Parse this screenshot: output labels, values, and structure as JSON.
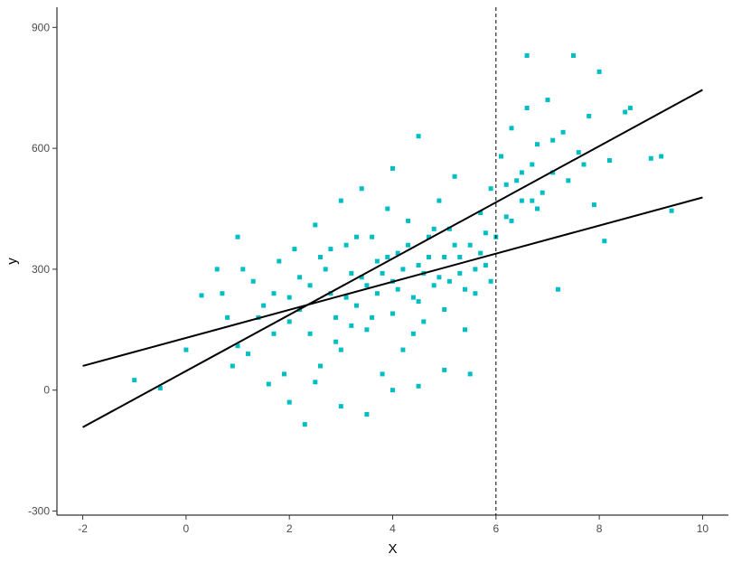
{
  "chart_data": {
    "type": "scatter",
    "title": "",
    "xlabel": "X",
    "ylabel": "y",
    "xlim": [
      -2.5,
      10.5
    ],
    "ylim": [
      -310,
      950
    ],
    "x_ticks": [
      -2,
      0,
      2,
      4,
      6,
      8,
      10
    ],
    "y_ticks": [
      -300,
      0,
      300,
      600,
      900
    ],
    "x_tick_labels": [
      "-2",
      "0",
      "2",
      "4",
      "6",
      "8",
      "10"
    ],
    "y_tick_labels": [
      "-300",
      "0",
      "300",
      "600",
      "900"
    ],
    "grid": false,
    "vline": {
      "x": 6,
      "style": "dashed",
      "color": "#000000"
    },
    "lines": [
      {
        "x": [
          -2,
          10
        ],
        "y": [
          60,
          478
        ],
        "color": "#000000"
      },
      {
        "x": [
          -2,
          10
        ],
        "y": [
          -92,
          745
        ],
        "color": "#000000"
      }
    ],
    "points_color": "#00BFC4",
    "points": [
      [
        -1.0,
        25
      ],
      [
        -0.5,
        5
      ],
      [
        0.0,
        100
      ],
      [
        0.3,
        235
      ],
      [
        0.6,
        300
      ],
      [
        0.8,
        180
      ],
      [
        0.9,
        60
      ],
      [
        1.0,
        380
      ],
      [
        1.0,
        110
      ],
      [
        1.2,
        90
      ],
      [
        1.3,
        270
      ],
      [
        1.5,
        210
      ],
      [
        1.6,
        15
      ],
      [
        1.7,
        140
      ],
      [
        1.8,
        320
      ],
      [
        1.9,
        40
      ],
      [
        2.0,
        230
      ],
      [
        2.0,
        170
      ],
      [
        2.1,
        350
      ],
      [
        2.2,
        280
      ],
      [
        2.3,
        -85
      ],
      [
        2.4,
        140
      ],
      [
        2.5,
        410
      ],
      [
        2.6,
        60
      ],
      [
        2.7,
        300
      ],
      [
        2.8,
        240
      ],
      [
        2.9,
        180
      ],
      [
        3.0,
        470
      ],
      [
        3.0,
        100
      ],
      [
        3.1,
        360
      ],
      [
        3.2,
        290
      ],
      [
        3.3,
        210
      ],
      [
        3.4,
        500
      ],
      [
        3.5,
        150
      ],
      [
        3.5,
        260
      ],
      [
        3.6,
        380
      ],
      [
        3.7,
        320
      ],
      [
        3.8,
        40
      ],
      [
        3.9,
        450
      ],
      [
        4.0,
        550
      ],
      [
        4.0,
        270
      ],
      [
        4.0,
        190
      ],
      [
        4.1,
        340
      ],
      [
        4.2,
        100
      ],
      [
        4.3,
        420
      ],
      [
        4.4,
        230
      ],
      [
        4.5,
        310
      ],
      [
        4.5,
        630
      ],
      [
        4.6,
        170
      ],
      [
        4.7,
        380
      ],
      [
        4.8,
        260
      ],
      [
        4.9,
        470
      ],
      [
        5.0,
        330
      ],
      [
        5.0,
        200
      ],
      [
        5.1,
        400
      ],
      [
        5.2,
        530
      ],
      [
        5.3,
        290
      ],
      [
        5.4,
        150
      ],
      [
        5.5,
        360
      ],
      [
        5.6,
        240
      ],
      [
        5.7,
        440
      ],
      [
        5.8,
        310
      ],
      [
        5.9,
        500
      ],
      [
        6.0,
        380
      ],
      [
        6.1,
        580
      ],
      [
        6.2,
        430
      ],
      [
        6.3,
        650
      ],
      [
        6.4,
        520
      ],
      [
        6.5,
        470
      ],
      [
        6.6,
        700
      ],
      [
        6.6,
        830
      ],
      [
        6.7,
        560
      ],
      [
        6.8,
        610
      ],
      [
        6.9,
        490
      ],
      [
        7.0,
        720
      ],
      [
        7.1,
        540
      ],
      [
        7.2,
        250
      ],
      [
        7.3,
        640
      ],
      [
        7.5,
        830
      ],
      [
        7.6,
        590
      ],
      [
        7.8,
        680
      ],
      [
        7.9,
        460
      ],
      [
        8.0,
        790
      ],
      [
        8.1,
        370
      ],
      [
        8.2,
        570
      ],
      [
        8.5,
        690
      ],
      [
        8.6,
        700
      ],
      [
        9.0,
        575
      ],
      [
        9.2,
        580
      ],
      [
        9.4,
        445
      ],
      [
        2.2,
        200
      ],
      [
        2.6,
        330
      ],
      [
        2.9,
        120
      ],
      [
        3.1,
        230
      ],
      [
        3.3,
        380
      ],
      [
        3.6,
        180
      ],
      [
        3.8,
        290
      ],
      [
        4.1,
        250
      ],
      [
        4.3,
        360
      ],
      [
        4.4,
        140
      ],
      [
        4.6,
        290
      ],
      [
        4.8,
        400
      ],
      [
        5.1,
        270
      ],
      [
        5.3,
        330
      ],
      [
        5.6,
        300
      ],
      [
        5.8,
        390
      ],
      [
        6.2,
        510
      ],
      [
        6.5,
        540
      ],
      [
        6.8,
        450
      ],
      [
        7.1,
        620
      ],
      [
        1.4,
        180
      ],
      [
        1.7,
        240
      ],
      [
        2.4,
        260
      ],
      [
        2.8,
        350
      ],
      [
        3.2,
        160
      ],
      [
        3.4,
        280
      ],
      [
        3.7,
        240
      ],
      [
        3.9,
        330
      ],
      [
        4.2,
        300
      ],
      [
        4.5,
        220
      ],
      [
        4.7,
        330
      ],
      [
        4.9,
        280
      ],
      [
        5.2,
        360
      ],
      [
        5.4,
        250
      ],
      [
        5.7,
        340
      ],
      [
        5.9,
        270
      ],
      [
        6.3,
        420
      ],
      [
        6.7,
        470
      ],
      [
        7.4,
        520
      ],
      [
        7.7,
        560
      ],
      [
        2.0,
        -30
      ],
      [
        2.5,
        20
      ],
      [
        3.0,
        -40
      ],
      [
        3.5,
        -60
      ],
      [
        4.0,
        0
      ],
      [
        4.5,
        10
      ],
      [
        5.0,
        50
      ],
      [
        5.5,
        40
      ],
      [
        1.1,
        300
      ],
      [
        0.7,
        240
      ]
    ]
  }
}
